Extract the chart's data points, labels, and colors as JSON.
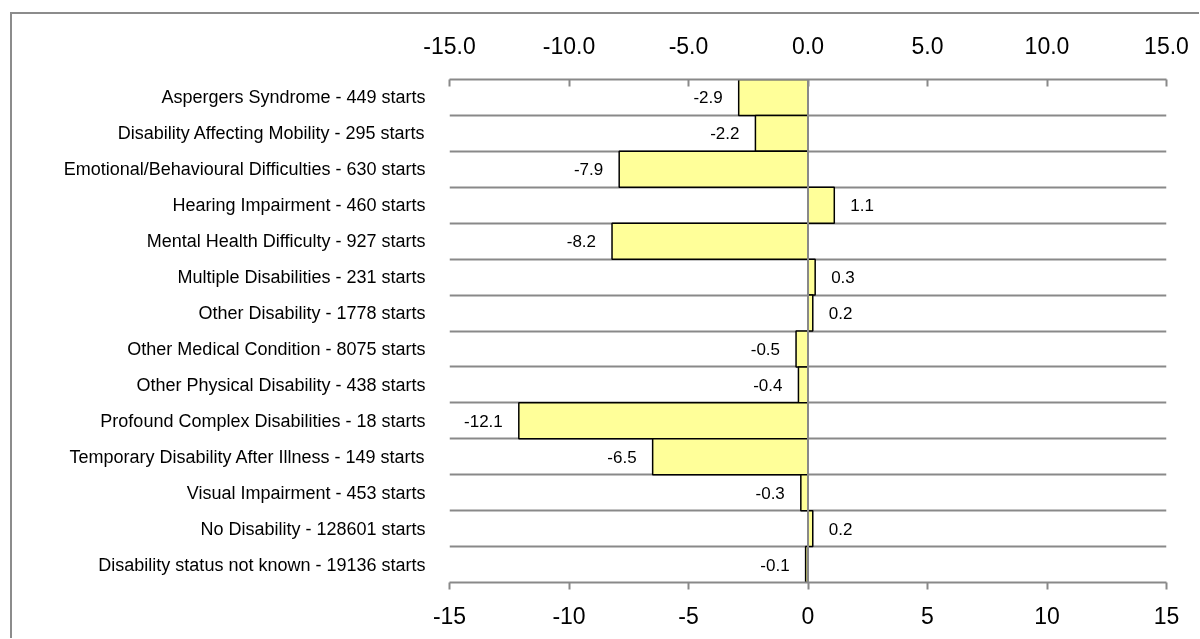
{
  "chart_data": {
    "type": "bar",
    "orientation": "horizontal",
    "categories": [
      "Aspergers Syndrome - 449 starts",
      "Disability Affecting Mobility - 295 starts",
      "Emotional/Behavioural Difficulties - 630 starts",
      "Hearing Impairment - 460 starts",
      "Mental Health Difficulty - 927 starts",
      "Multiple Disabilities - 231 starts",
      "Other Disability - 1778 starts",
      "Other Medical Condition - 8075 starts",
      "Other Physical Disability - 438 starts",
      "Profound Complex Disabilities - 18 starts",
      "Temporary Disability After Illness - 149 starts",
      "Visual Impairment - 453 starts",
      "No Disability - 128601 starts",
      "Disability status not known - 19136 starts"
    ],
    "values": [
      -2.9,
      -2.2,
      -7.9,
      1.1,
      -8.2,
      0.3,
      0.2,
      -0.5,
      -0.4,
      -12.1,
      -6.5,
      -0.3,
      0.2,
      -0.1
    ],
    "color": "#ffff99",
    "data_labels": true,
    "grid": "y",
    "ref_lines": [
      {
        "axis": "x",
        "value": 0,
        "color": "#898989"
      }
    ],
    "xlim": [
      -15,
      15
    ],
    "xticks": [
      -15,
      -10,
      -5,
      0,
      5,
      10,
      15
    ],
    "x2lim": [
      -15,
      15
    ],
    "x2ticks": [
      {
        "value": -15,
        "label": "-15.0"
      },
      {
        "value": -10,
        "label": "-10.0"
      },
      {
        "value": -5,
        "label": "-5.0"
      },
      {
        "value": 0,
        "label": "0.0"
      },
      {
        "value": 5,
        "label": "5.0"
      },
      {
        "value": 10,
        "label": "10.0"
      },
      {
        "value": 15,
        "label": "15.0"
      }
    ]
  }
}
